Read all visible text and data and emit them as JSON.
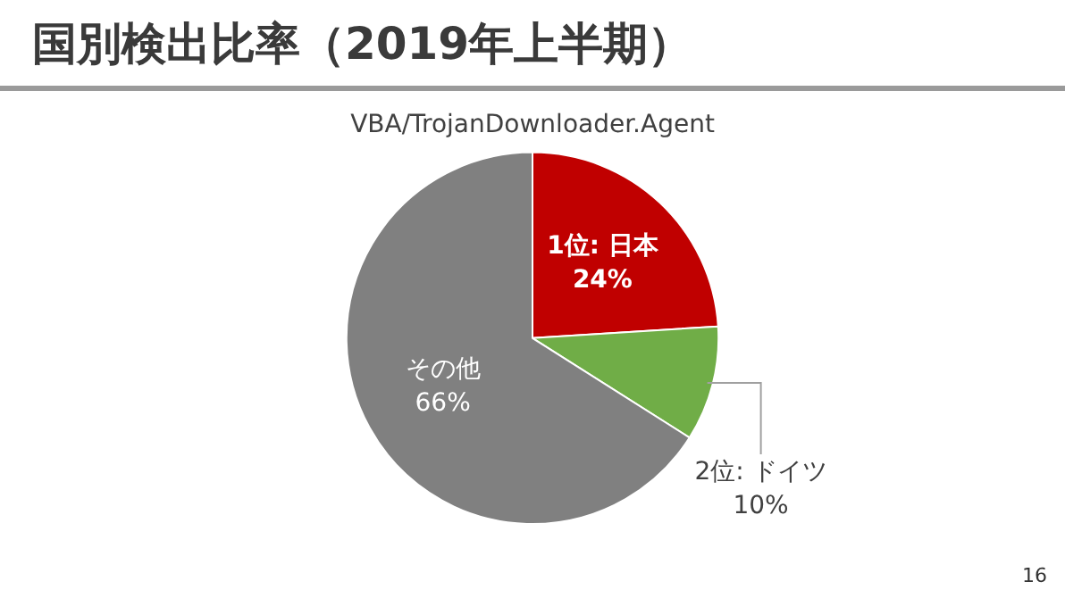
{
  "chart_data": {
    "type": "pie",
    "title": "国別検出比率（2019年上半期）",
    "subtitle": "VBA/TrojanDownloader.Agent",
    "categories": [
      "1位: 日本",
      "2位: ドイツ",
      "その他"
    ],
    "values": [
      24,
      10,
      66
    ],
    "colors": [
      "#c00000",
      "#70ad47",
      "#808080"
    ],
    "value_labels": [
      "24%",
      "10%",
      "66%"
    ],
    "legend": false,
    "annotations": [
      "16"
    ]
  }
}
